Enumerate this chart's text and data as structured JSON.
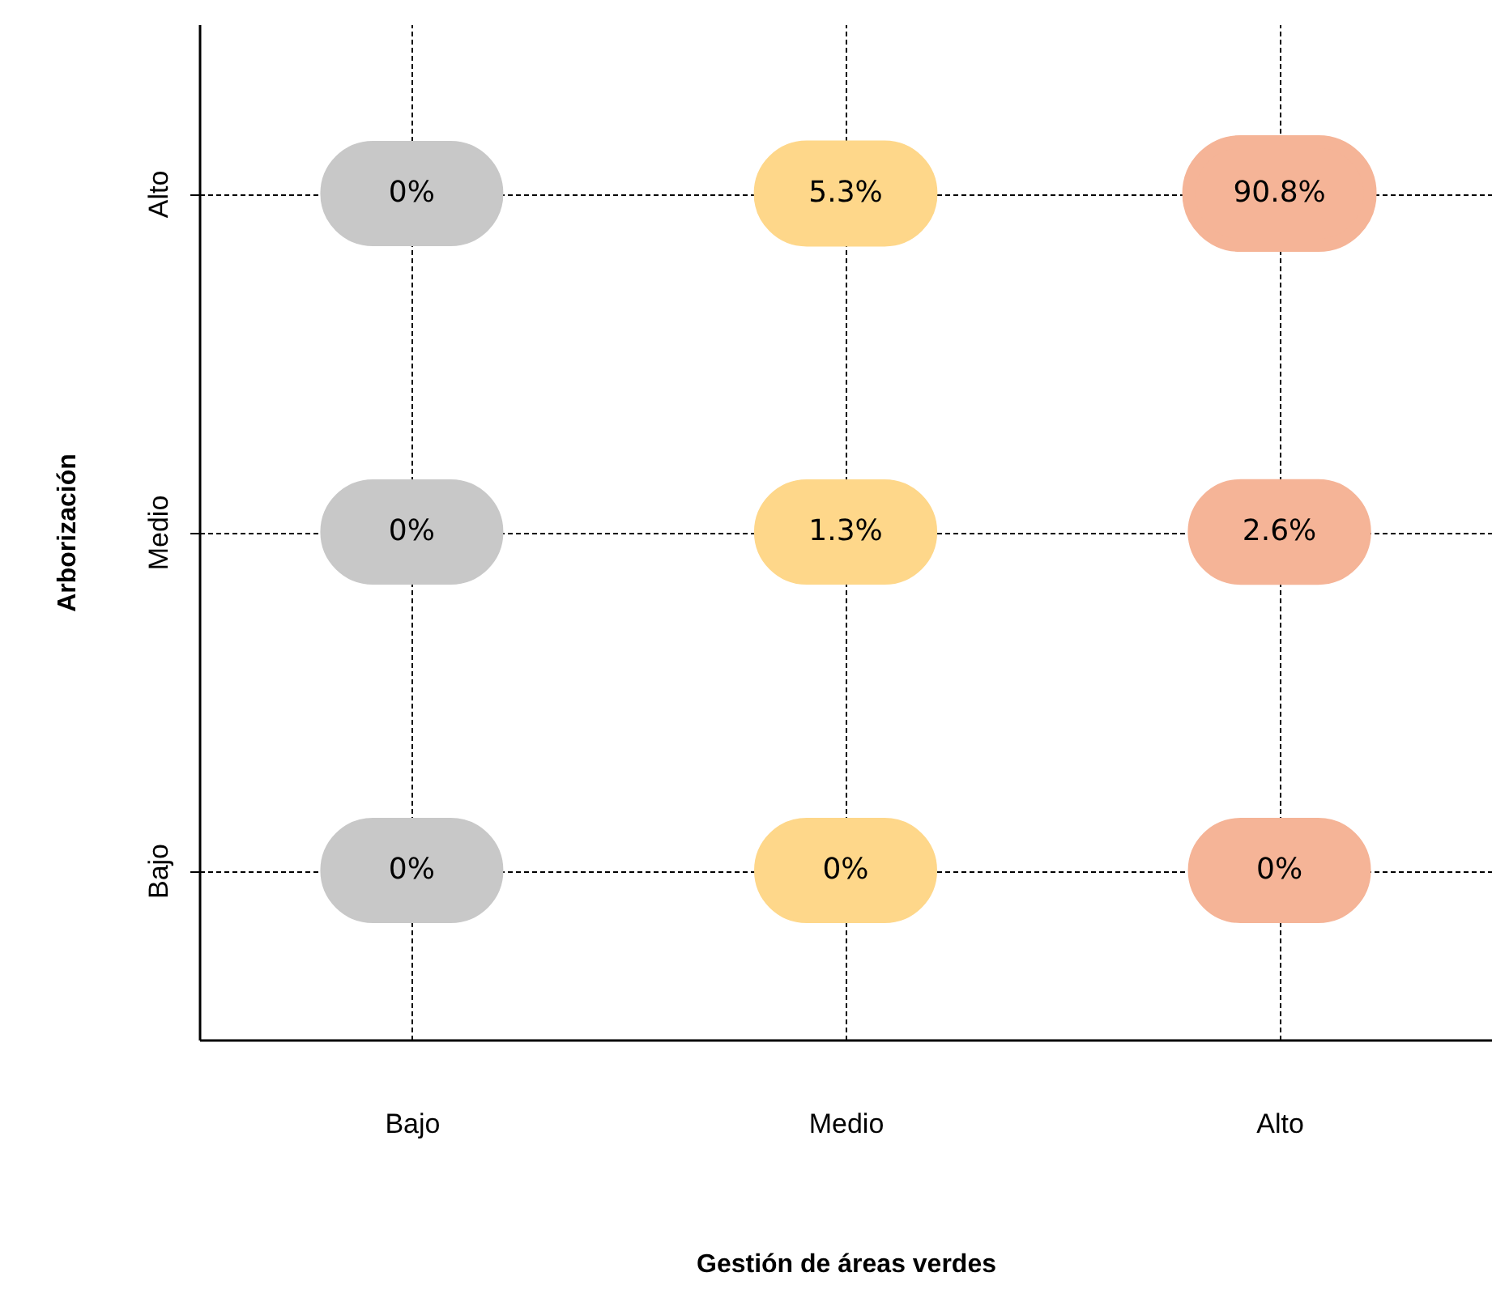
{
  "chart_data": {
    "type": "heatmap",
    "xlabel": "Gestión de áreas verdes",
    "ylabel": "Arborización",
    "categories": [
      "Bajo",
      "Medio",
      "Alto"
    ],
    "y_categories": [
      "Alto",
      "Medio",
      "Bajo"
    ],
    "cells": [
      [
        0,
        5.3,
        90.8
      ],
      [
        0,
        1.3,
        2.6
      ],
      [
        0,
        0,
        0
      ]
    ],
    "cell_labels": [
      [
        "0%",
        "5.3%",
        "90.8%"
      ],
      [
        "0%",
        "1.3%",
        "2.6%"
      ],
      [
        "0%",
        "0%",
        "0%"
      ]
    ],
    "colors": [
      "#c8c8c8",
      "#fed78a",
      "#f5b497",
      "#c8c8c8",
      "#fed78a",
      "#f5b497",
      "#c8c8c8",
      "#fed78a",
      "#f5b497"
    ],
    "grid": true
  }
}
